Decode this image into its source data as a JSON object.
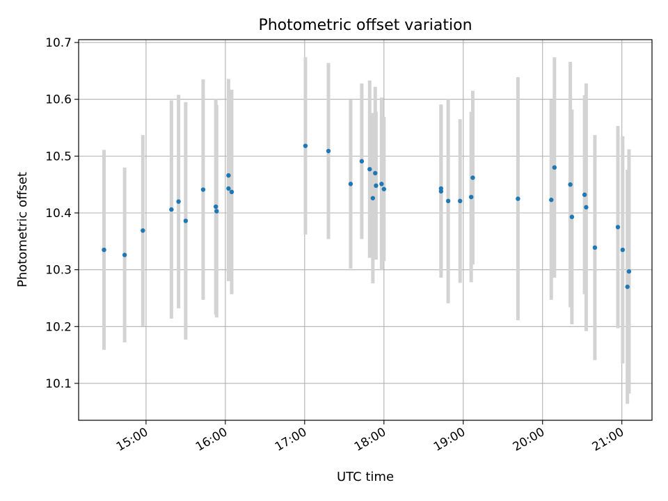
{
  "chart_data": {
    "type": "scatter",
    "title": "Photometric offset variation",
    "xlabel": "UTC time",
    "ylabel": "Photometric offset",
    "x_unit": "hours UTC",
    "xlim": [
      14.15,
      21.38
    ],
    "ylim": [
      10.035,
      10.705
    ],
    "grid": true,
    "x_ticks": [
      {
        "value": 15,
        "label": "15:00"
      },
      {
        "value": 16,
        "label": "16:00"
      },
      {
        "value": 17,
        "label": "17:00"
      },
      {
        "value": 18,
        "label": "18:00"
      },
      {
        "value": 19,
        "label": "19:00"
      },
      {
        "value": 20,
        "label": "20:00"
      },
      {
        "value": 21,
        "label": "21:00"
      }
    ],
    "y_ticks": [
      {
        "value": 10.1,
        "label": "10.1"
      },
      {
        "value": 10.2,
        "label": "10.2"
      },
      {
        "value": 10.3,
        "label": "10.3"
      },
      {
        "value": 10.4,
        "label": "10.4"
      },
      {
        "value": 10.5,
        "label": "10.5"
      },
      {
        "value": 10.6,
        "label": "10.6"
      },
      {
        "value": 10.7,
        "label": "10.7"
      }
    ],
    "point_color": "#1f77b4",
    "errorbar_color": "#d3d3d3",
    "points": [
      {
        "x": 14.47,
        "y": 10.335,
        "err": 0.176
      },
      {
        "x": 14.73,
        "y": 10.326,
        "err": 0.154
      },
      {
        "x": 14.96,
        "y": 10.369,
        "err": 0.168
      },
      {
        "x": 15.32,
        "y": 10.406,
        "err": 0.192
      },
      {
        "x": 15.41,
        "y": 10.42,
        "err": 0.188
      },
      {
        "x": 15.5,
        "y": 10.386,
        "err": 0.209
      },
      {
        "x": 15.72,
        "y": 10.441,
        "err": 0.194
      },
      {
        "x": 15.88,
        "y": 10.411,
        "err": 0.19
      },
      {
        "x": 15.89,
        "y": 10.403,
        "err": 0.187
      },
      {
        "x": 16.04,
        "y": 10.466,
        "err": 0.17
      },
      {
        "x": 16.04,
        "y": 10.443,
        "err": 0.163
      },
      {
        "x": 16.08,
        "y": 10.437,
        "err": 0.18
      },
      {
        "x": 17.01,
        "y": 10.518,
        "err": 0.156
      },
      {
        "x": 17.3,
        "y": 10.509,
        "err": 0.155
      },
      {
        "x": 17.58,
        "y": 10.451,
        "err": 0.149
      },
      {
        "x": 17.72,
        "y": 10.491,
        "err": 0.137
      },
      {
        "x": 17.82,
        "y": 10.477,
        "err": 0.156
      },
      {
        "x": 17.86,
        "y": 10.426,
        "err": 0.15
      },
      {
        "x": 17.89,
        "y": 10.47,
        "err": 0.152
      },
      {
        "x": 17.9,
        "y": 10.448,
        "err": 0.13
      },
      {
        "x": 17.97,
        "y": 10.451,
        "err": 0.152
      },
      {
        "x": 18.0,
        "y": 10.442,
        "err": 0.127
      },
      {
        "x": 18.72,
        "y": 10.443,
        "err": 0.148
      },
      {
        "x": 18.72,
        "y": 10.438,
        "err": 0.152
      },
      {
        "x": 18.81,
        "y": 10.421,
        "err": 0.18
      },
      {
        "x": 18.96,
        "y": 10.421,
        "err": 0.144
      },
      {
        "x": 19.1,
        "y": 10.428,
        "err": 0.15
      },
      {
        "x": 19.12,
        "y": 10.462,
        "err": 0.153
      },
      {
        "x": 19.69,
        "y": 10.425,
        "err": 0.214
      },
      {
        "x": 20.11,
        "y": 10.423,
        "err": 0.176
      },
      {
        "x": 20.15,
        "y": 10.48,
        "err": 0.194
      },
      {
        "x": 20.35,
        "y": 10.45,
        "err": 0.216
      },
      {
        "x": 20.37,
        "y": 10.393,
        "err": 0.189
      },
      {
        "x": 20.53,
        "y": 10.432,
        "err": 0.175
      },
      {
        "x": 20.55,
        "y": 10.41,
        "err": 0.218
      },
      {
        "x": 20.66,
        "y": 10.339,
        "err": 0.198
      },
      {
        "x": 20.95,
        "y": 10.375,
        "err": 0.178
      },
      {
        "x": 21.01,
        "y": 10.335,
        "err": 0.2
      },
      {
        "x": 21.07,
        "y": 10.27,
        "err": 0.206
      },
      {
        "x": 21.09,
        "y": 10.297,
        "err": 0.215
      }
    ]
  }
}
